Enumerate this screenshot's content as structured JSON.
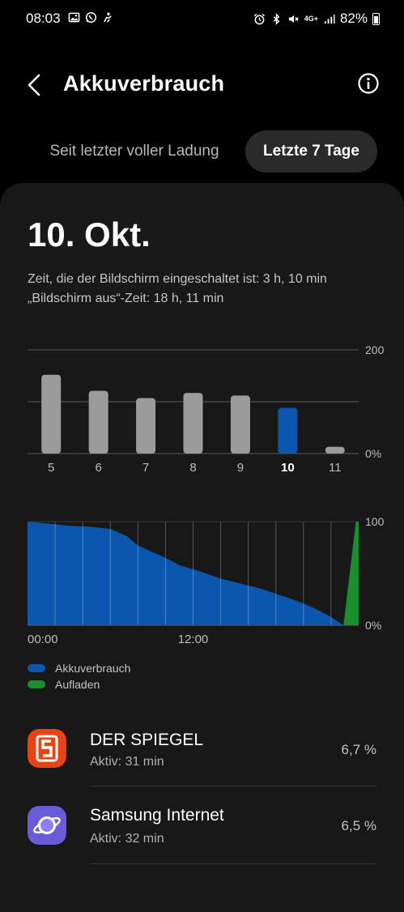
{
  "status_bar": {
    "time": "08:03",
    "network": "4G+",
    "battery_percent": "82%",
    "left_icons": [
      "gallery-icon",
      "whatsapp-icon",
      "notification-icon"
    ],
    "right_icons": [
      "alarm-icon",
      "bluetooth-icon",
      "mute-icon",
      "signal-icon",
      "battery-icon"
    ]
  },
  "header": {
    "title": "Akkuverbrauch"
  },
  "tabs": [
    {
      "label": "Seit letzter voller Ladung",
      "selected": false
    },
    {
      "label": "Letzte 7 Tage",
      "selected": true
    }
  ],
  "summary": {
    "date": "10. Okt.",
    "screen_on": "Zeit, die der Bildschirm eingeschaltet ist: 3 h, 10 min",
    "screen_off": "„Bildschirm aus“-Zeit: 18 h, 11 min"
  },
  "chart_data": [
    {
      "type": "bar",
      "categories": [
        "5",
        "6",
        "7",
        "8",
        "9",
        "10",
        "11"
      ],
      "values": [
        152,
        121,
        107,
        117,
        112,
        88,
        13
      ],
      "selected_category": "10",
      "y_tick_labels": [
        "200",
        "0%"
      ],
      "ylim": [
        0,
        200
      ],
      "grid": true,
      "colors": {
        "default": "#9b9b9b",
        "selected": "#0b57b0"
      }
    },
    {
      "type": "area",
      "x_tick_labels": [
        "00:00",
        "12:00"
      ],
      "y_tick_labels": [
        "100",
        "0%"
      ],
      "ylim": [
        0,
        100
      ],
      "x_hours": [
        0,
        1.5,
        3,
        4.5,
        6,
        7.2,
        8,
        9,
        10,
        11,
        12.5,
        14,
        15.5,
        17,
        18.3,
        19,
        20,
        21,
        22,
        22.9
      ],
      "battery_level": [
        100,
        98,
        96,
        95,
        93,
        86,
        77,
        71,
        65,
        58,
        52,
        45,
        40,
        35,
        29,
        26,
        21,
        15,
        8,
        0
      ],
      "charging_start": 22.9,
      "charging_end": 24,
      "charging_level": [
        0,
        100
      ],
      "colors": {
        "Akkuverbrauch": "#0b57b0",
        "Aufladen": "#1a8f2e"
      }
    }
  ],
  "legend": [
    {
      "label": "Akkuverbrauch",
      "color": "#0b57b0"
    },
    {
      "label": "Aufladen",
      "color": "#1a8f2e"
    }
  ],
  "apps": [
    {
      "name": "DER SPIEGEL",
      "active": "Aktiv: 31 min",
      "percent": "6,7 %",
      "icon": "spiegel-icon"
    },
    {
      "name": "Samsung Internet",
      "active": "Aktiv: 32 min",
      "percent": "6,5 %",
      "icon": "samsung-internet-icon"
    }
  ]
}
